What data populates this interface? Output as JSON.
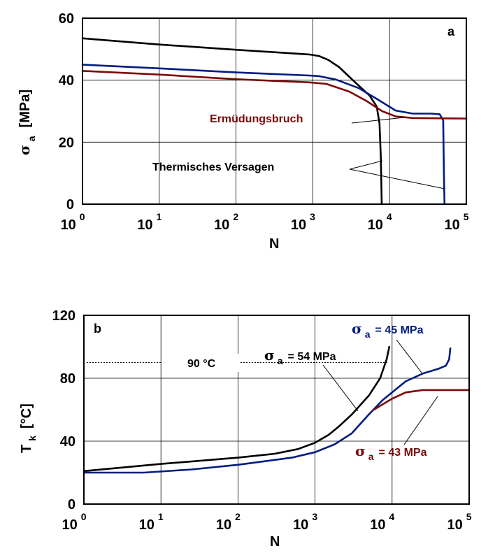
{
  "colors": {
    "black": "#000000",
    "blue": "#001c80",
    "red": "#7a0a0a",
    "grid": "#000000"
  },
  "chart_data": [
    {
      "type": "line",
      "panel_label": "a",
      "xlabel": "N",
      "ylabel_symbol": "σ",
      "ylabel_sub": "a",
      "ylabel_unit": "[MPa]",
      "xscale": "log",
      "xlim": [
        1,
        100000
      ],
      "ylim": [
        0,
        60
      ],
      "x_ticks": [
        {
          "base": "10",
          "exp": "0"
        },
        {
          "base": "10",
          "exp": "1"
        },
        {
          "base": "10",
          "exp": "2"
        },
        {
          "base": "10",
          "exp": "3"
        },
        {
          "base": "10",
          "exp": "4"
        },
        {
          "base": "10",
          "exp": "5"
        }
      ],
      "y_ticks": [
        "0",
        "20",
        "40",
        "60"
      ],
      "grid": true,
      "annotations": [
        {
          "text": "Ermüdungsbruch",
          "color": "red"
        },
        {
          "text": "Thermisches Versagen",
          "color": "black"
        }
      ],
      "series": [
        {
          "color": "black",
          "points": [
            [
              1,
              53.5
            ],
            [
              10,
              51.5
            ],
            [
              100,
              49.8
            ],
            [
              900,
              48.3
            ],
            [
              1200,
              47.8
            ],
            [
              1600,
              46.5
            ],
            [
              2200,
              44.2
            ],
            [
              3500,
              39.5
            ],
            [
              5500,
              35.0
            ],
            [
              6800,
              31.5
            ],
            [
              7400,
              26
            ],
            [
              7700,
              15
            ],
            [
              7900,
              0
            ]
          ]
        },
        {
          "color": "blue",
          "points": [
            [
              1,
              45
            ],
            [
              10,
              43.8
            ],
            [
              100,
              42.5
            ],
            [
              900,
              41.5
            ],
            [
              1200,
              41.3
            ],
            [
              2000,
              40.2
            ],
            [
              4000,
              37.4
            ],
            [
              7000,
              33.8
            ],
            [
              12000,
              30.2
            ],
            [
              20000,
              29.2
            ],
            [
              35000,
              29.2
            ],
            [
              45000,
              29.0
            ],
            [
              50000,
              27
            ],
            [
              51000,
              10
            ],
            [
              52000,
              0
            ]
          ]
        },
        {
          "color": "red",
          "points": [
            [
              1,
              43
            ],
            [
              10,
              41.8
            ],
            [
              100,
              40.3
            ],
            [
              900,
              39.3
            ],
            [
              1500,
              38.8
            ],
            [
              3000,
              36.3
            ],
            [
              5000,
              33.3
            ],
            [
              8000,
              30.0
            ],
            [
              12000,
              28.3
            ],
            [
              20000,
              27.8
            ],
            [
              100000,
              27.6
            ]
          ]
        }
      ]
    },
    {
      "type": "line",
      "panel_label": "b",
      "xlabel": "N",
      "ylabel_main": "T",
      "ylabel_sub": "k",
      "ylabel_unit": "[°C]",
      "xscale": "log",
      "xlim": [
        1,
        100000
      ],
      "ylim": [
        0,
        120
      ],
      "x_ticks": [
        {
          "base": "10",
          "exp": "0"
        },
        {
          "base": "10",
          "exp": "1"
        },
        {
          "base": "10",
          "exp": "2"
        },
        {
          "base": "10",
          "exp": "3"
        },
        {
          "base": "10",
          "exp": "4"
        },
        {
          "base": "10",
          "exp": "5"
        }
      ],
      "y_ticks": [
        "0",
        "40",
        "80",
        "120"
      ],
      "grid": true,
      "reference_line": {
        "y": 90,
        "label": "90 °C"
      },
      "annotations": [
        {
          "symbol": "σ",
          "sub": "a",
          "text": "= 45 MPa",
          "color": "blue"
        },
        {
          "symbol": "σ",
          "sub": "a",
          "text": "= 54 MPa",
          "color": "black"
        },
        {
          "symbol": "σ",
          "sub": "a",
          "text": "= 43 MPa",
          "color": "red"
        }
      ],
      "series": [
        {
          "color": "black",
          "points": [
            [
              1,
              21
            ],
            [
              10,
              25.5
            ],
            [
              100,
              29.5
            ],
            [
              300,
              32
            ],
            [
              600,
              35
            ],
            [
              1000,
              39
            ],
            [
              1500,
              44
            ],
            [
              2000,
              49
            ],
            [
              3000,
              57
            ],
            [
              5000,
              69
            ],
            [
              7000,
              80
            ],
            [
              8500,
              92
            ],
            [
              9200,
              100
            ]
          ]
        },
        {
          "color": "blue",
          "points": [
            [
              1,
              20
            ],
            [
              6,
              20
            ],
            [
              25,
              22
            ],
            [
              100,
              25
            ],
            [
              500,
              29.5
            ],
            [
              1000,
              33
            ],
            [
              1800,
              38
            ],
            [
              3000,
              45
            ],
            [
              5000,
              57
            ],
            [
              7500,
              66
            ],
            [
              10000,
              71
            ],
            [
              15000,
              78
            ],
            [
              25000,
              83
            ],
            [
              40000,
              86
            ],
            [
              50000,
              88
            ],
            [
              55000,
              92
            ],
            [
              57000,
              99
            ]
          ]
        },
        {
          "color": "red",
          "points": [
            [
              5800,
              60
            ],
            [
              10000,
              67
            ],
            [
              15000,
              71
            ],
            [
              25000,
              72.5
            ],
            [
              100000,
              72.5
            ]
          ]
        }
      ]
    }
  ]
}
